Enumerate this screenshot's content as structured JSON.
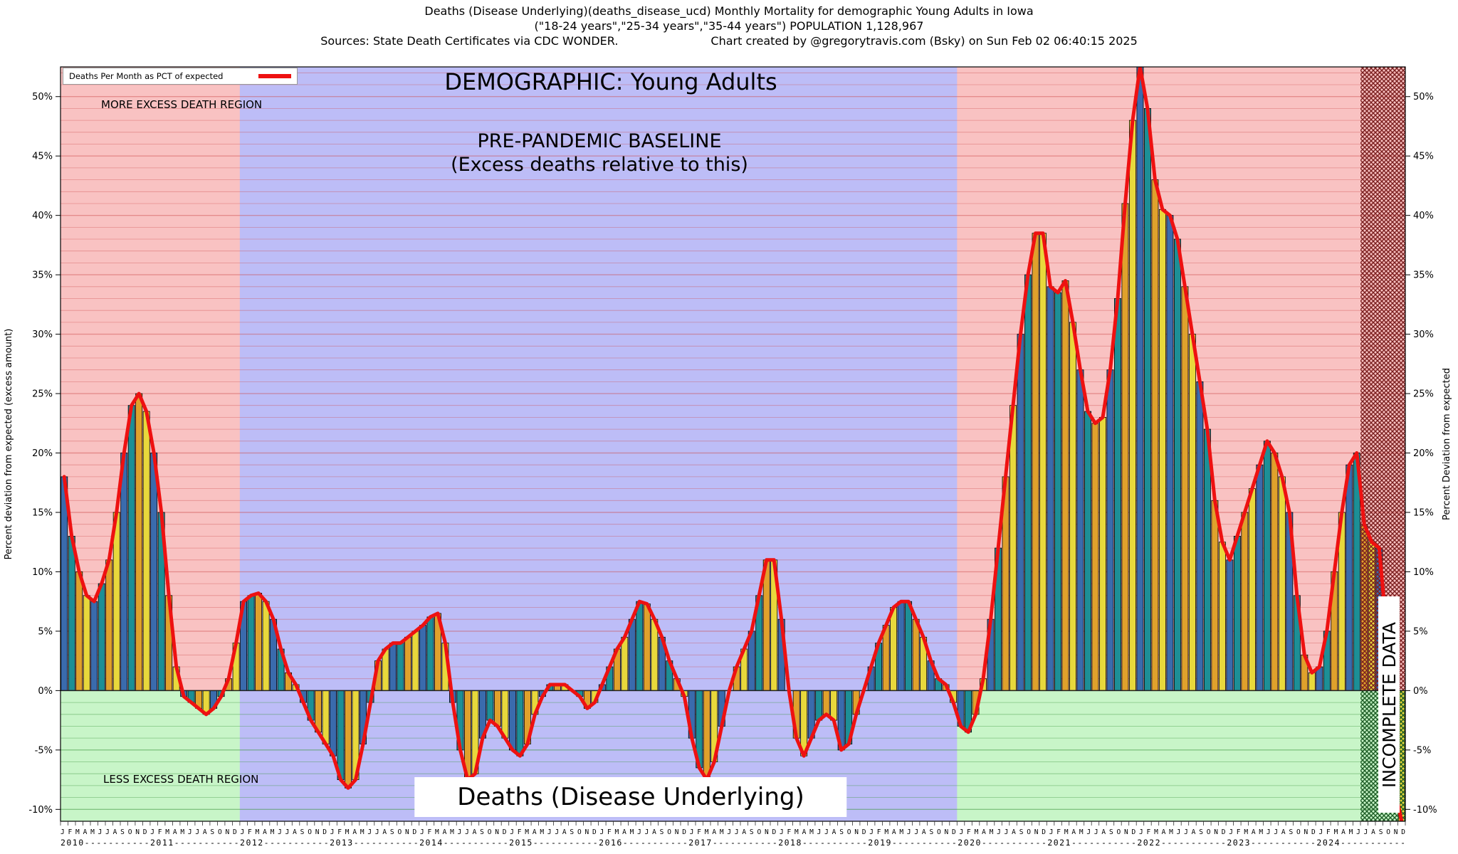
{
  "header": {
    "title_line1": "Deaths (Disease Underlying)(deaths_disease_ucd) Monthly Mortality for demographic Young Adults in Iowa",
    "title_line2": "(\"18-24 years\",\"25-34 years\",\"35-44 years\") POPULATION 1,128,967",
    "title_line3_left": "Sources: State Death Certificates via CDC WONDER.",
    "title_line3_right": "Chart created by @gregorytravis.com (Bsky) on Sun Feb 02 06:40:15 2025"
  },
  "annotations": {
    "legend_label": "Deaths Per Month as PCT of expected",
    "more_excess": "MORE EXCESS DEATH REGION",
    "less_excess": "LESS EXCESS DEATH REGION",
    "demographic": "DEMOGRAPHIC: Young Adults",
    "baseline_line1": "PRE-PANDEMIC BASELINE",
    "baseline_line2": "(Excess deaths relative to this)",
    "bottom_label": "Deaths (Disease Underlying)",
    "incomplete": "INCOMPLETE DATA",
    "left_axis_title": "Percent deviation from expected (excess amount)",
    "right_axis_title": "Percent Deviation from expected"
  },
  "chart_data": {
    "type": "bar",
    "series_label": "Deaths Per Month as PCT of expected",
    "ylabel": "Percent deviation from expected (excess amount)",
    "ylabel_right": "Percent Deviation from expected",
    "ylim": [
      -11,
      52.5
    ],
    "ytick_step": 5,
    "months": [
      "J",
      "F",
      "M",
      "A",
      "M",
      "J",
      "J",
      "A",
      "S",
      "O",
      "N",
      "D"
    ],
    "start_year": 2010,
    "years": [
      {
        "year": 2010,
        "values": [
          18,
          13,
          10,
          8,
          7.5,
          9,
          11,
          15,
          20,
          24,
          25,
          23.5
        ]
      },
      {
        "year": 2011,
        "values": [
          20,
          15,
          8,
          2,
          -0.5,
          -1,
          -1.5,
          -2,
          -1.5,
          -0.5,
          1,
          4
        ]
      },
      {
        "year": 2012,
        "values": [
          7.5,
          8,
          8.2,
          7.5,
          6,
          3.5,
          1.5,
          0.5,
          -1,
          -2.5,
          -3.5,
          -4.5
        ]
      },
      {
        "year": 2013,
        "values": [
          -5.5,
          -7.5,
          -8.2,
          -7.5,
          -4.5,
          -1,
          2.5,
          3.5,
          4,
          4,
          4.5,
          5
        ]
      },
      {
        "year": 2014,
        "values": [
          5.5,
          6.2,
          6.5,
          4,
          -1,
          -5,
          -7.5,
          -7,
          -4,
          -2.5,
          -3,
          -4
        ]
      },
      {
        "year": 2015,
        "values": [
          -5,
          -5.5,
          -4.5,
          -2,
          -0.5,
          0.5,
          0.5,
          0.5,
          0,
          -0.5,
          -1.5,
          -1
        ]
      },
      {
        "year": 2016,
        "values": [
          0.5,
          2,
          3.5,
          4.5,
          6,
          7.5,
          7.3,
          6,
          4.5,
          2.5,
          1,
          -0.5
        ]
      },
      {
        "year": 2017,
        "values": [
          -4,
          -6.5,
          -7.5,
          -6,
          -3,
          0,
          2,
          3.5,
          5,
          8,
          11,
          11
        ]
      },
      {
        "year": 2018,
        "values": [
          6,
          0,
          -4,
          -5.5,
          -4,
          -2.5,
          -2,
          -2.5,
          -5,
          -4.5,
          -2,
          0
        ]
      },
      {
        "year": 2019,
        "values": [
          2,
          4,
          5.5,
          7,
          7.5,
          7.5,
          6,
          4.5,
          2.5,
          1,
          0.5,
          -1
        ]
      },
      {
        "year": 2020,
        "values": [
          -3,
          -3.5,
          -2,
          1,
          6,
          12,
          18,
          24,
          30,
          35,
          38.5,
          38.5
        ]
      },
      {
        "year": 2021,
        "values": [
          34,
          33.5,
          34.5,
          31,
          27,
          23.5,
          22.5,
          23,
          27,
          33,
          41,
          48
        ]
      },
      {
        "year": 2022,
        "values": [
          52.5,
          49,
          43,
          40.5,
          40,
          38,
          34,
          30,
          26,
          22,
          16,
          12.5
        ]
      },
      {
        "year": 2023,
        "values": [
          11,
          13,
          15,
          17,
          19,
          21,
          20,
          18,
          15,
          8,
          3,
          1.5
        ]
      },
      {
        "year": 2024,
        "values": [
          2,
          5,
          10,
          15,
          19,
          20,
          14,
          12.5,
          12,
          5,
          -8,
          -11
        ]
      }
    ],
    "regions": {
      "baseline": {
        "from_year": 2012,
        "to_year": 2019,
        "color": "#bdbdf7"
      },
      "incomplete": {
        "from_year": 2024,
        "from_month": 7
      }
    },
    "colors": {
      "excess_bg": "#f9c2c2",
      "less_bg": "#c8f5c8",
      "grid_excess": "rgba(205,75,75,0.45)",
      "grid_less": "rgba(60,150,60,0.5)",
      "hatch_excess": "#7a1f1f",
      "hatch_less": "#1d5c26",
      "bar_palette": [
        "#3a6bad",
        "#1d8f96",
        "#e0a12c",
        "#e8d83c"
      ],
      "line_color": "#ee1111"
    }
  }
}
